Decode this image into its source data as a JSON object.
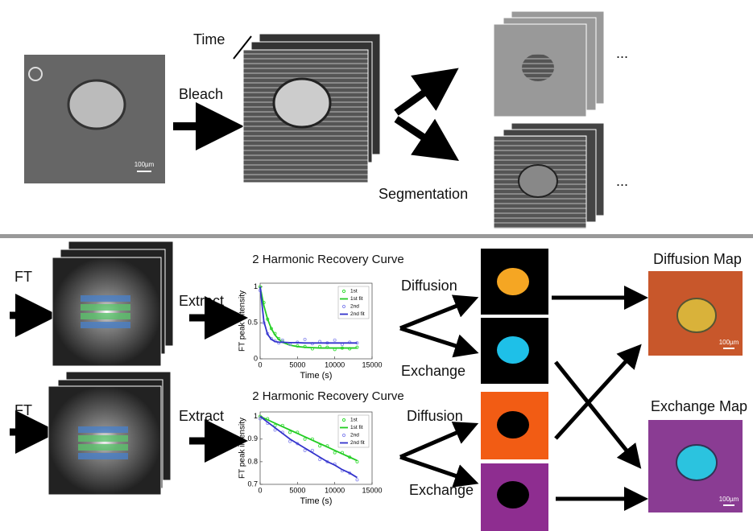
{
  "top": {
    "time_label": "Time",
    "bleach_label": "Bleach",
    "segmentation_label": "Segmentation",
    "ellipsis": [
      "...",
      "..."
    ]
  },
  "bottom": {
    "rows": [
      {
        "ft": "FT",
        "extract": "Extract",
        "diffusion": "Diffusion",
        "exchange": "Exchange"
      },
      {
        "ft": "FT",
        "extract": "Extract",
        "diffusion": "Diffusion",
        "exchange": "Exchange"
      }
    ],
    "map_labels": [
      "Diffusion Map",
      "Exchange Map"
    ]
  },
  "scale_bars": [
    "100µm",
    "100µm",
    "100µm"
  ],
  "chart_data": [
    {
      "type": "line",
      "title": "2 Harmonic Recovery Curve",
      "x_label": "Time (s)",
      "y_label": "FT peak intensity",
      "x": [
        0,
        500,
        1000,
        1500,
        2000,
        2500,
        3000,
        4000,
        5000,
        6000,
        7000,
        8000,
        9000,
        10000,
        11000,
        12000,
        13000
      ],
      "xlim": [
        0,
        15000
      ],
      "xticks": [
        0,
        5000,
        10000,
        15000
      ],
      "ylim": [
        0,
        1.05
      ],
      "yticks": [
        0,
        0.5,
        1
      ],
      "legend": "upper right",
      "series": [
        {
          "name": "1st",
          "color": "#33dd33",
          "style": "markers",
          "values": [
            1.0,
            0.78,
            0.55,
            0.42,
            0.35,
            0.28,
            0.24,
            0.2,
            0.18,
            0.17,
            0.14,
            0.17,
            0.16,
            0.13,
            0.15,
            0.14,
            0.16
          ]
        },
        {
          "name": "1st fit",
          "color": "#22cc22",
          "style": "line",
          "values": [
            1.0,
            0.74,
            0.55,
            0.42,
            0.33,
            0.27,
            0.23,
            0.19,
            0.17,
            0.16,
            0.155,
            0.15,
            0.15,
            0.15,
            0.15,
            0.15,
            0.15
          ]
        },
        {
          "name": "2nd",
          "color": "#8888ee",
          "style": "markers",
          "values": [
            0.95,
            0.5,
            0.35,
            0.28,
            0.25,
            0.22,
            0.26,
            0.2,
            0.23,
            0.27,
            0.21,
            0.24,
            0.22,
            0.26,
            0.2,
            0.23,
            0.22
          ]
        },
        {
          "name": "2nd fit",
          "color": "#3333cc",
          "style": "line",
          "values": [
            1.0,
            0.52,
            0.34,
            0.27,
            0.24,
            0.23,
            0.23,
            0.225,
            0.225,
            0.22,
            0.22,
            0.22,
            0.22,
            0.22,
            0.22,
            0.22,
            0.22
          ]
        }
      ]
    },
    {
      "type": "line",
      "title": "2 Harmonic Recovery Curve",
      "x_label": "Time (s)",
      "y_label": "FT peak intensity",
      "x": [
        0,
        1000,
        2000,
        3000,
        4000,
        5000,
        6000,
        7000,
        8000,
        9000,
        10000,
        11000,
        12000,
        13000
      ],
      "xlim": [
        0,
        15000
      ],
      "xticks": [
        0,
        5000,
        10000,
        15000
      ],
      "ylim": [
        0.7,
        1.02
      ],
      "yticks": [
        0.7,
        0.8,
        0.9,
        1
      ],
      "legend": "upper right",
      "series": [
        {
          "name": "1st",
          "color": "#33dd33",
          "style": "markers",
          "values": [
            1.0,
            0.99,
            0.96,
            0.96,
            0.93,
            0.93,
            0.9,
            0.9,
            0.87,
            0.87,
            0.84,
            0.84,
            0.82,
            0.8
          ]
        },
        {
          "name": "1st fit",
          "color": "#22cc22",
          "style": "line",
          "values": [
            1.0,
            0.985,
            0.97,
            0.955,
            0.94,
            0.925,
            0.91,
            0.895,
            0.88,
            0.865,
            0.85,
            0.835,
            0.82,
            0.805
          ]
        },
        {
          "name": "2nd",
          "color": "#8888ee",
          "style": "markers",
          "values": [
            0.99,
            0.97,
            0.94,
            0.93,
            0.89,
            0.88,
            0.85,
            0.85,
            0.81,
            0.8,
            0.79,
            0.76,
            0.75,
            0.72
          ]
        },
        {
          "name": "2nd fit",
          "color": "#3333cc",
          "style": "line",
          "values": [
            1.0,
            0.975,
            0.95,
            0.925,
            0.9,
            0.88,
            0.86,
            0.84,
            0.82,
            0.8,
            0.785,
            0.765,
            0.75,
            0.73
          ]
        }
      ]
    }
  ]
}
